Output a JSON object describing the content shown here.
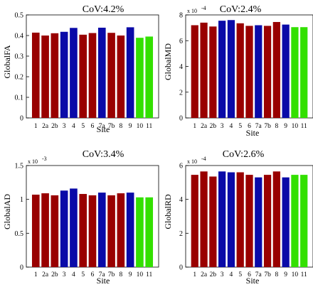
{
  "colors": {
    "site_group_a": "#990000",
    "site_group_b": "#0a0aa8",
    "site_group_c": "#33e000"
  },
  "chart_data": [
    {
      "type": "bar",
      "title": "CoV:4.2%",
      "xlabel": "Site",
      "ylabel": "GlobalFA",
      "exponent_label": "",
      "ylim": [
        0,
        0.5
      ],
      "yticks": [
        "0",
        "0.1",
        "0.2",
        "0.3",
        "0.4",
        "0.5"
      ],
      "categories": [
        "1",
        "2a",
        "2b",
        "3",
        "4",
        "5",
        "6",
        "7a",
        "7b",
        "8",
        "9",
        "10",
        "11"
      ],
      "values": [
        0.414,
        0.4,
        0.411,
        0.418,
        0.437,
        0.404,
        0.412,
        0.438,
        0.413,
        0.4,
        0.44,
        0.389,
        0.395
      ],
      "colors": [
        "#990000",
        "#990000",
        "#990000",
        "#0a0aa8",
        "#0a0aa8",
        "#990000",
        "#990000",
        "#0a0aa8",
        "#990000",
        "#990000",
        "#0a0aa8",
        "#33e000",
        "#33e000"
      ]
    },
    {
      "type": "bar",
      "title": "CoV:2.4%",
      "xlabel": "Site",
      "ylabel": "GlobalMD",
      "exponent_label": "x 10",
      "exponent_power": "-4",
      "ylim": [
        0,
        8
      ],
      "yticks": [
        "0",
        "2",
        "4",
        "6",
        "8"
      ],
      "categories": [
        "1",
        "2a",
        "2b",
        "3",
        "4",
        "5",
        "6",
        "7a",
        "7b",
        "8",
        "9",
        "10",
        "11"
      ],
      "values": [
        7.2,
        7.4,
        7.1,
        7.55,
        7.6,
        7.35,
        7.15,
        7.2,
        7.15,
        7.45,
        7.25,
        7.05,
        7.05
      ],
      "colors": [
        "#990000",
        "#990000",
        "#990000",
        "#0a0aa8",
        "#0a0aa8",
        "#990000",
        "#990000",
        "#0a0aa8",
        "#990000",
        "#990000",
        "#0a0aa8",
        "#33e000",
        "#33e000"
      ]
    },
    {
      "type": "bar",
      "title": "CoV:3.4%",
      "xlabel": "Site",
      "ylabel": "GlobalAD",
      "exponent_label": "x 10",
      "exponent_power": "-3",
      "ylim": [
        0,
        1.5
      ],
      "yticks": [
        "0",
        "0.5",
        "1",
        "1.5"
      ],
      "categories": [
        "1",
        "2a",
        "2b",
        "3",
        "4",
        "5",
        "6",
        "7a",
        "7b",
        "8",
        "9",
        "10",
        "11"
      ],
      "values": [
        1.07,
        1.09,
        1.06,
        1.13,
        1.16,
        1.08,
        1.06,
        1.1,
        1.06,
        1.09,
        1.1,
        1.03,
        1.03
      ],
      "colors": [
        "#990000",
        "#990000",
        "#990000",
        "#0a0aa8",
        "#0a0aa8",
        "#990000",
        "#990000",
        "#0a0aa8",
        "#990000",
        "#990000",
        "#0a0aa8",
        "#33e000",
        "#33e000"
      ]
    },
    {
      "type": "bar",
      "title": "CoV:2.6%",
      "xlabel": "Site",
      "ylabel": "GlobalRD",
      "exponent_label": "x 10",
      "exponent_power": "-4",
      "ylim": [
        0,
        6
      ],
      "yticks": [
        "0",
        "2",
        "4",
        "6"
      ],
      "categories": [
        "1",
        "2a",
        "2b",
        "3",
        "4",
        "5",
        "6",
        "7a",
        "7b",
        "8",
        "9",
        "10",
        "11"
      ],
      "values": [
        5.45,
        5.65,
        5.35,
        5.65,
        5.6,
        5.6,
        5.45,
        5.3,
        5.45,
        5.65,
        5.3,
        5.45,
        5.45
      ],
      "colors": [
        "#990000",
        "#990000",
        "#990000",
        "#0a0aa8",
        "#0a0aa8",
        "#990000",
        "#990000",
        "#0a0aa8",
        "#990000",
        "#990000",
        "#0a0aa8",
        "#33e000",
        "#33e000"
      ]
    }
  ]
}
